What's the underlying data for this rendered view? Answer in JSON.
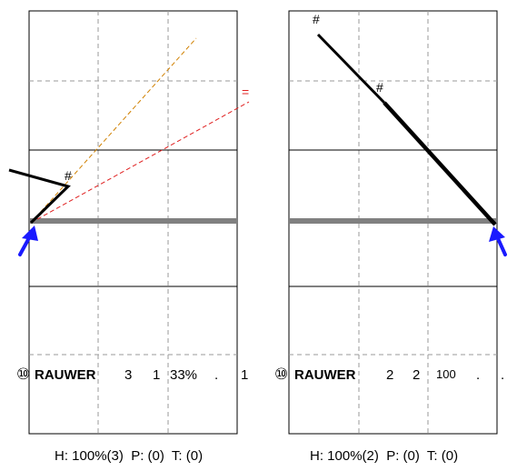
{
  "panels": [
    {
      "id": "left",
      "row_label": {
        "circled_number": "⑩",
        "name": "RAUWER",
        "stats": [
          "3",
          "1",
          "33%",
          ".",
          "1"
        ]
      },
      "footer": "H: 100%(3)  P: (0)  T: (0)",
      "marker_labels": [
        "#"
      ],
      "equal_sign": "="
    },
    {
      "id": "right",
      "row_label": {
        "circled_number": "⑩",
        "name": "RAUWER",
        "stats": [
          "2",
          "2",
          "100",
          ".",
          "."
        ]
      },
      "footer": "H: 100%(2)  P: (0)  T: (0)",
      "marker_labels": [
        "#",
        "#"
      ]
    }
  ],
  "colors": {
    "grid_solid": "#000000",
    "grid_dashed": "#9a9a9a",
    "baseline": "#808080",
    "path": "#000000",
    "arrow": "#1a1aff",
    "orange_dash": "#d08000",
    "red_dash": "#e02020"
  }
}
